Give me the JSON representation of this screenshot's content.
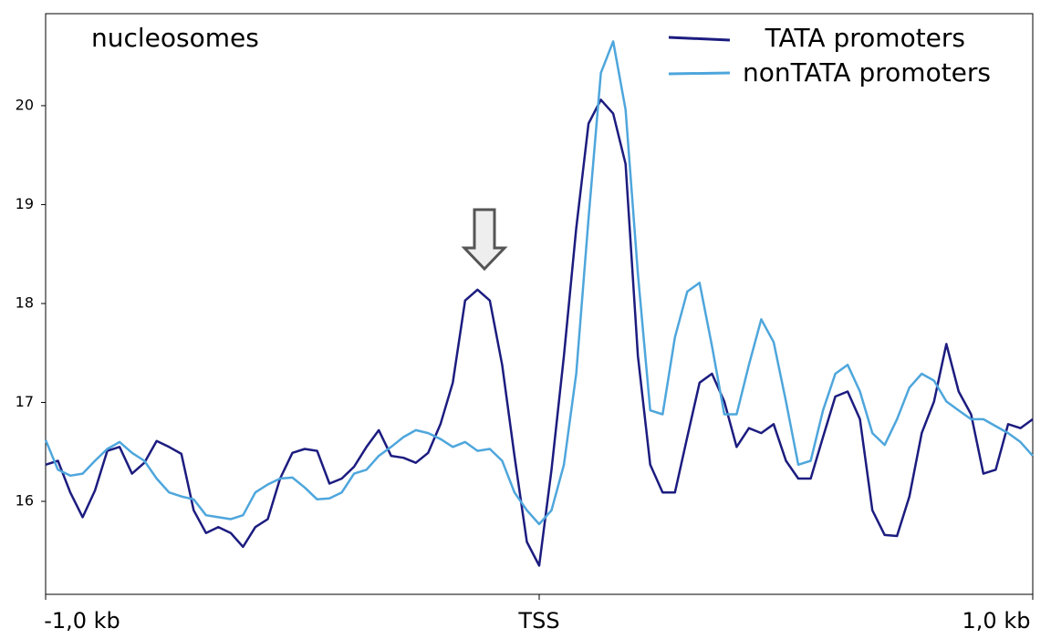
{
  "chart_data": {
    "type": "line",
    "annotation": "nucleosomes",
    "x": [
      -1000,
      -975,
      -950,
      -925,
      -900,
      -875,
      -850,
      -825,
      -800,
      -775,
      -750,
      -725,
      -700,
      -675,
      -650,
      -625,
      -600,
      -575,
      -550,
      -525,
      -500,
      -475,
      -450,
      -425,
      -400,
      -375,
      -350,
      -325,
      -300,
      -275,
      -250,
      -225,
      -200,
      -175,
      -150,
      -125,
      -100,
      -75,
      -50,
      -25,
      0,
      25,
      50,
      75,
      100,
      125,
      150,
      175,
      200,
      225,
      250,
      275,
      300,
      325,
      350,
      375,
      400,
      425,
      450,
      475,
      500,
      525,
      550,
      575,
      600,
      625,
      650,
      675,
      700,
      725,
      750,
      775,
      800,
      825,
      850,
      875,
      900,
      925,
      950,
      975,
      1000
    ],
    "series": [
      {
        "name": "TATA promoters",
        "color": "#1c1c80",
        "values": [
          16.37,
          16.41,
          16.09,
          15.84,
          16.11,
          16.51,
          16.55,
          16.28,
          16.39,
          16.61,
          16.55,
          16.48,
          15.91,
          15.68,
          15.74,
          15.68,
          15.54,
          15.74,
          15.82,
          16.23,
          16.49,
          16.53,
          16.51,
          16.18,
          16.23,
          16.35,
          16.55,
          16.72,
          16.46,
          16.44,
          16.39,
          16.49,
          16.78,
          17.2,
          18.03,
          18.14,
          18.03,
          17.38,
          16.46,
          15.59,
          15.35,
          16.32,
          17.47,
          18.76,
          19.82,
          20.06,
          19.92,
          19.41,
          17.47,
          16.37,
          16.09,
          16.09,
          16.65,
          17.2,
          17.29,
          17.01,
          16.55,
          16.74,
          16.69,
          16.78,
          16.41,
          16.23,
          16.23,
          16.65,
          17.06,
          17.11,
          16.83,
          15.91,
          15.66,
          15.65,
          16.05,
          16.69,
          17.01,
          17.59,
          17.11,
          16.88,
          16.28,
          16.32,
          16.78,
          16.74,
          16.83
        ]
      },
      {
        "name": "nonTATA promoters",
        "color": "#4ea6dc",
        "values": [
          16.62,
          16.32,
          16.26,
          16.28,
          16.41,
          16.53,
          16.6,
          16.49,
          16.41,
          16.23,
          16.09,
          16.05,
          16.02,
          15.86,
          15.84,
          15.82,
          15.86,
          16.09,
          16.17,
          16.23,
          16.24,
          16.14,
          16.02,
          16.03,
          16.09,
          16.28,
          16.32,
          16.46,
          16.55,
          16.65,
          16.72,
          16.69,
          16.63,
          16.55,
          16.6,
          16.51,
          16.53,
          16.41,
          16.09,
          15.91,
          15.77,
          15.91,
          16.37,
          17.29,
          18.86,
          20.33,
          20.65,
          19.96,
          18.3,
          16.92,
          16.88,
          17.66,
          18.12,
          18.21,
          17.57,
          16.88,
          16.88,
          17.38,
          17.84,
          17.61,
          17.01,
          16.37,
          16.41,
          16.92,
          17.29,
          17.38,
          17.11,
          16.69,
          16.57,
          16.83,
          17.15,
          17.29,
          17.22,
          17.01,
          16.92,
          16.83,
          16.83,
          16.76,
          16.69,
          16.6,
          16.46
        ]
      }
    ],
    "xlim": [
      -1000,
      1000
    ],
    "xticks": [
      {
        "value": -1000,
        "label": "-1,0 kb"
      },
      {
        "value": 0,
        "label": "TSS"
      },
      {
        "value": 1000,
        "label": "1,0 kb"
      }
    ],
    "ylim": [
      15.06,
      20.93
    ],
    "yticks": [
      16,
      17,
      18,
      19,
      20
    ],
    "grid": false,
    "legend": "upper right"
  }
}
